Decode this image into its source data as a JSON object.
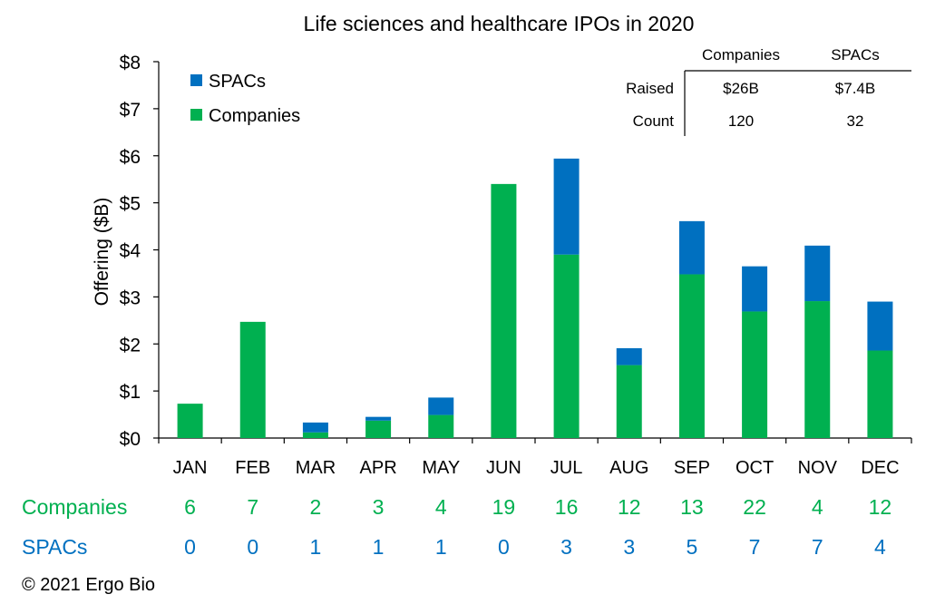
{
  "chart_data": {
    "type": "bar",
    "stacked": true,
    "title": "Life sciences and healthcare IPOs in 2020",
    "ylabel": "Offering ($B)",
    "xlabel": "",
    "ylim": [
      0,
      8
    ],
    "yticks": [
      0,
      1,
      2,
      3,
      4,
      5,
      6,
      7,
      8
    ],
    "ytick_labels": [
      "$0",
      "$1",
      "$2",
      "$3",
      "$4",
      "$5",
      "$6",
      "$7",
      "$8"
    ],
    "grid": false,
    "legend_position": "top-left",
    "categories": [
      "JAN",
      "FEB",
      "MAR",
      "APR",
      "MAY",
      "JUN",
      "JUL",
      "AUG",
      "SEP",
      "OCT",
      "NOV",
      "DEC"
    ],
    "series": [
      {
        "name": "Companies",
        "color": "#00b050",
        "values": [
          0.73,
          2.47,
          0.12,
          0.37,
          0.49,
          5.4,
          3.9,
          1.55,
          3.48,
          2.69,
          2.91,
          1.86
        ]
      },
      {
        "name": "SPACs",
        "color": "#0070c0",
        "values": [
          0.0,
          0.0,
          0.21,
          0.08,
          0.37,
          0.0,
          2.04,
          0.36,
          1.13,
          0.96,
          1.18,
          1.04
        ]
      }
    ],
    "legend": [
      "SPACs",
      "Companies"
    ],
    "summary_table": {
      "columns": [
        "Companies",
        "SPACs"
      ],
      "rows": [
        {
          "label": "Raised",
          "values": [
            "$26B",
            "$7.4B"
          ]
        },
        {
          "label": "Count",
          "values": [
            "120",
            "32"
          ]
        }
      ]
    }
  },
  "counts": {
    "companies_label": "Companies",
    "spacs_label": "SPACs",
    "companies": [
      "6",
      "7",
      "2",
      "3",
      "4",
      "19",
      "16",
      "12",
      "13",
      "22",
      "4",
      "12"
    ],
    "spacs": [
      "0",
      "0",
      "1",
      "1",
      "1",
      "0",
      "3",
      "3",
      "5",
      "7",
      "7",
      "4"
    ],
    "companies_color": "#00b050",
    "spacs_color": "#0070c0"
  },
  "footer": "© 2021 Ergo Bio"
}
